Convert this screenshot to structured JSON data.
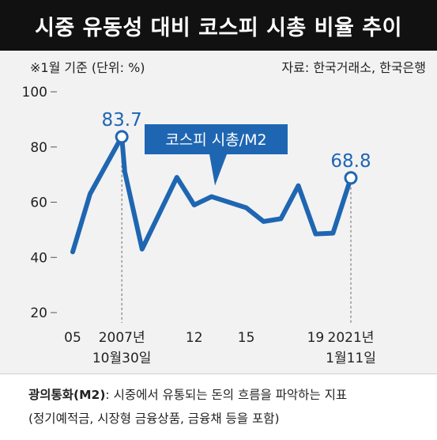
{
  "title": "시중 유동성 대비 코스피 시총 비율 추이",
  "note_left": "※1월 기준 (단위: %)",
  "note_right": "자료: 한국거래소, 한국은행",
  "footer": {
    "term": "광의통화(M2)",
    "definition": ": 시중에서 유통되는 돈의 흐름을 파악하는 지표",
    "line2": "(정기예적금, 시장형 금융상품, 금융채 등을 포함)"
  },
  "colors": {
    "line": "#1f66b2",
    "title_bg": "#111111",
    "chart_bg": "#f2f2f2"
  },
  "chart_data": {
    "type": "line",
    "series": [
      {
        "name": "코스피 시총/M2",
        "x": [
          2005,
          2006,
          2007.83,
          2008,
          2009,
          2010,
          2011,
          2012,
          2013,
          2014,
          2015,
          2016,
          2017,
          2018,
          2019,
          2020,
          2021.03
        ],
        "values": [
          42,
          63,
          83.7,
          71,
          43,
          56,
          69,
          59,
          62,
          60,
          58,
          53,
          54,
          66,
          48.5,
          48.8,
          68.8
        ]
      }
    ],
    "highlighted_points": [
      {
        "x": 2007.83,
        "value": 83.7,
        "label": "83.7",
        "date_label": [
          "2007년",
          "10월30일"
        ]
      },
      {
        "x": 2021.03,
        "value": 68.8,
        "label": "68.8",
        "date_label": [
          "2021년",
          "1월11일"
        ]
      }
    ],
    "xticks": [
      {
        "x": 2005,
        "label": "05"
      },
      {
        "x": 2012,
        "label": "12"
      },
      {
        "x": 2015,
        "label": "15"
      },
      {
        "x": 2019,
        "label": "19"
      }
    ],
    "yticks": [
      20,
      40,
      60,
      80,
      100
    ],
    "ylim": [
      20,
      100
    ],
    "xlim": [
      2005,
      2021.03
    ],
    "grid": false,
    "legend": "callout"
  }
}
